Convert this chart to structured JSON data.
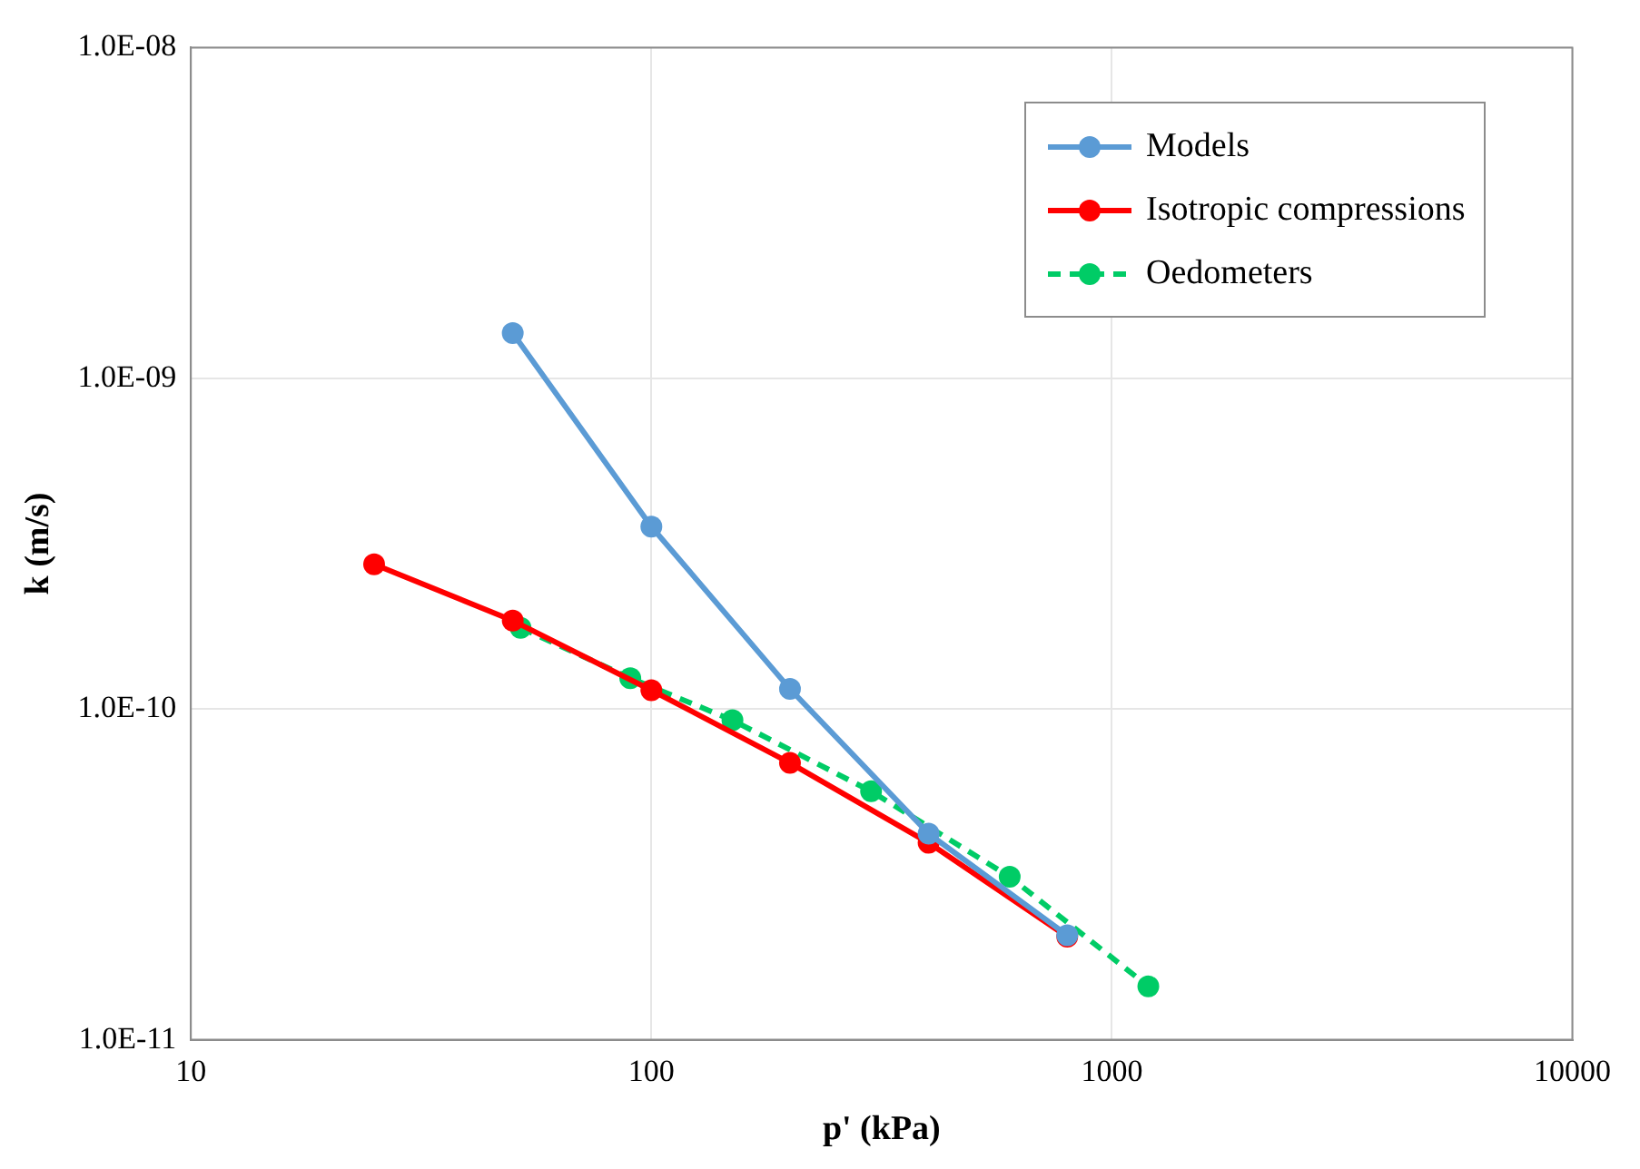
{
  "chart_data": {
    "type": "line",
    "xlabel": "p' (kPa)",
    "ylabel": "k (m/s)",
    "log": "xy",
    "grid": true,
    "legend": "top right",
    "marker": "circle",
    "xlim": [
      10,
      10000
    ],
    "xticks": [
      10,
      100,
      1000,
      10000
    ],
    "ylim": [
      1e-11,
      1e-08
    ],
    "yticks": [
      {
        "value": 1e-11,
        "label": "1.0E-11"
      },
      {
        "value": 1e-10,
        "label": "1.0E-10"
      },
      {
        "value": 1e-09,
        "label": "1.0E-09"
      },
      {
        "value": 1e-08,
        "label": "1.0E-08"
      }
    ],
    "series": [
      {
        "name": "Models",
        "color": "#5b9bd5",
        "line_style": "solid",
        "x": [
          50,
          100,
          200,
          400,
          800
        ],
        "values": [
          1.37e-09,
          3.56e-10,
          1.15e-10,
          4.2e-11,
          2.07e-11
        ]
      },
      {
        "name": "Isotropic compressions",
        "color": "#ff0000",
        "line_style": "solid",
        "x": [
          25,
          50,
          100,
          200,
          400,
          800
        ],
        "values": [
          2.74e-10,
          1.85e-10,
          1.14e-10,
          6.87e-11,
          3.94e-11,
          2.05e-11
        ]
      },
      {
        "name": "Oedometers",
        "color": "#00cc66",
        "line_style": "dashed",
        "x": [
          52,
          90,
          150,
          300,
          600,
          1200
        ],
        "values": [
          1.76e-10,
          1.24e-10,
          9.25e-11,
          5.64e-11,
          3.11e-11,
          1.45e-11
        ]
      }
    ]
  }
}
